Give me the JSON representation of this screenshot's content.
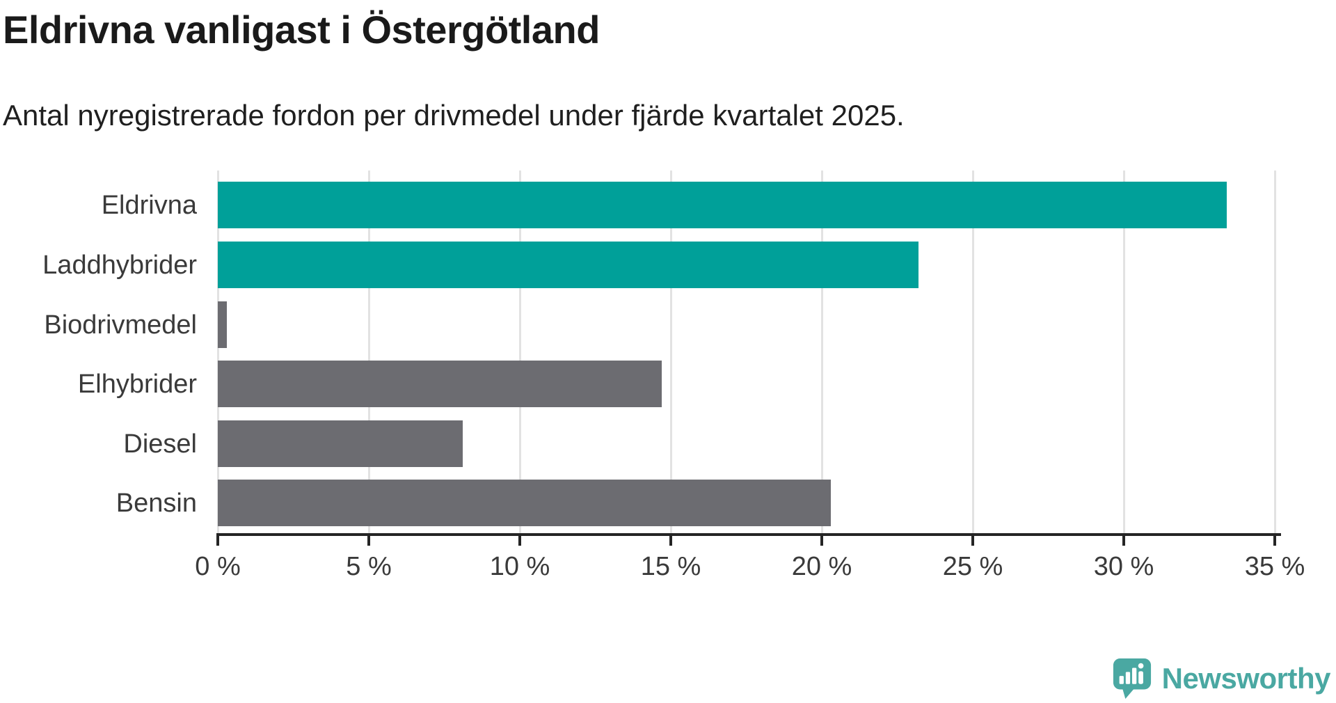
{
  "header": {
    "title": "Eldrivna vanligast i Östergötland",
    "subtitle": "Antal nyregistrerade fordon per drivmedel under fjärde kvartalet 2025."
  },
  "chart_data": {
    "type": "bar",
    "orientation": "horizontal",
    "title": "Eldrivna vanligast i Östergötland",
    "subtitle": "Antal nyregistrerade fordon per drivmedel under fjärde kvartalet 2025.",
    "categories": [
      "Eldrivna",
      "Laddhybrider",
      "Biodrivmedel",
      "Elhybrider",
      "Diesel",
      "Bensin"
    ],
    "values": [
      33.4,
      23.2,
      0.3,
      14.7,
      8.1,
      20.3
    ],
    "bar_colors": [
      "teal",
      "teal",
      "gray",
      "gray",
      "gray",
      "gray"
    ],
    "unit": "%",
    "xlabel": "",
    "ylabel": "",
    "xlim": [
      0,
      35
    ],
    "x_tick_values": [
      0,
      5,
      10,
      15,
      20,
      25,
      30,
      35
    ],
    "x_tick_labels": [
      "0 %",
      "5 %",
      "10 %",
      "15 %",
      "20 %",
      "25 %",
      "30 %",
      "35 %"
    ],
    "grid": true,
    "legend": false
  },
  "colors": {
    "teal": "#00a099",
    "gray": "#6c6c71",
    "grid": "#e2e2e2",
    "axis": "#252525",
    "label_text": "#3a3a3a",
    "title_text": "#1a1a1a",
    "logo": "#4aa8a2"
  },
  "branding": {
    "logo_text": "Newsworthy",
    "logo_icon": "newsworthy-speech-bubble-chart-icon"
  }
}
